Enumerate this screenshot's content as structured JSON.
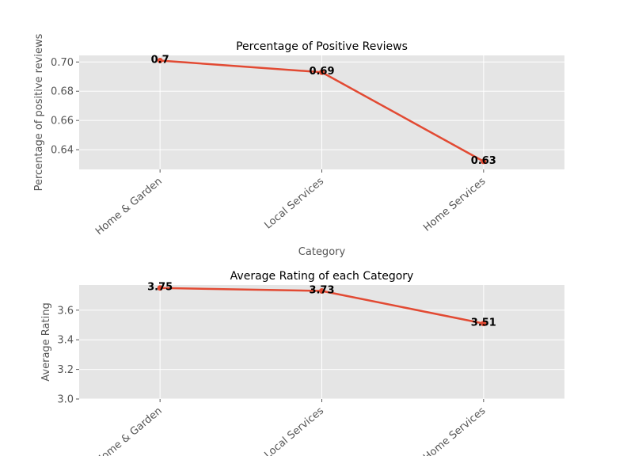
{
  "chart_data": [
    {
      "type": "line",
      "title": "Percentage of Positive Reviews",
      "xlabel": "Category",
      "ylabel": "Percentage of positive reviews",
      "categories": [
        "Home & Garden",
        "Local Services",
        "Home Services"
      ],
      "values": [
        0.701,
        0.693,
        0.632
      ],
      "data_labels": [
        "0.7",
        "0.69",
        "0.63"
      ],
      "yticks": [
        "0.64",
        "0.66",
        "0.68",
        "0.70"
      ],
      "ytick_values": [
        0.64,
        0.66,
        0.68,
        0.7
      ],
      "ylim": [
        0.6265,
        0.7045
      ],
      "grid": true,
      "color": "#E24A33"
    },
    {
      "type": "line",
      "title": "Average Rating of each Category",
      "xlabel": "",
      "ylabel": "Average Rating",
      "categories": [
        "Home & Garden",
        "Local Services",
        "Home Services"
      ],
      "values": [
        3.75,
        3.73,
        3.51
      ],
      "data_labels": [
        "3.75",
        "3.73",
        "3.51"
      ],
      "yticks": [
        "3.0",
        "3.2",
        "3.4",
        "3.6"
      ],
      "ytick_values": [
        3.0,
        3.2,
        3.4,
        3.6
      ],
      "ylim": [
        3.0,
        3.77
      ],
      "grid": true,
      "color": "#E24A33"
    }
  ]
}
